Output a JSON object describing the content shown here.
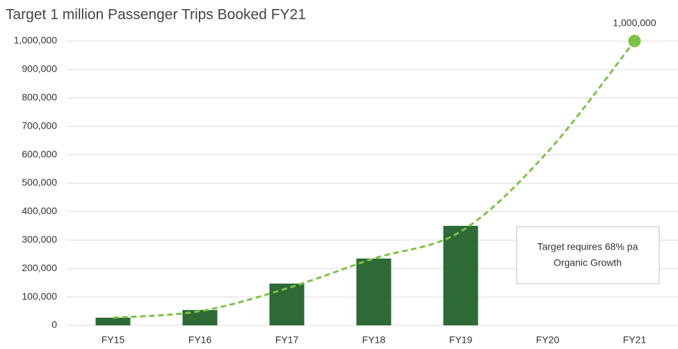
{
  "chart_data": {
    "type": "bar",
    "title": "Target 1 million Passenger Trips Booked FY21",
    "categories": [
      "FY15",
      "FY16",
      "FY17",
      "FY18",
      "FY19",
      "FY20",
      "FY21"
    ],
    "series": [
      {
        "name": "Passenger Trips",
        "type": "bar",
        "color": "#2d6a35",
        "values": [
          27000,
          54000,
          147000,
          235000,
          350000,
          null,
          null
        ]
      },
      {
        "name": "Target",
        "type": "line",
        "color": "#7dc242",
        "dashed": true,
        "values": [
          27000,
          50000,
          130000,
          235000,
          330000,
          610000,
          1000000
        ],
        "value_labels": [
          null,
          null,
          null,
          null,
          null,
          null,
          "1,000,000"
        ]
      }
    ],
    "annotation": [
      "Target requires 68% pa",
      "Organic Growth"
    ],
    "ylim": [
      0,
      1000000
    ],
    "yticks": [
      0,
      {
        "value": 100000,
        "label": "100,000"
      },
      {
        "value": 200000,
        "label": "200,000"
      },
      {
        "value": 300000,
        "label": "300,000"
      },
      {
        "value": 400000,
        "label": "400,000"
      },
      {
        "value": 500000,
        "label": "500,000"
      },
      {
        "value": 600000,
        "label": "600,000"
      },
      {
        "value": 700000,
        "label": "700,000"
      },
      {
        "value": 800000,
        "label": "800,000"
      },
      {
        "value": 900000,
        "label": "900,000"
      },
      {
        "value": 1000000,
        "label": "1,000,000"
      }
    ],
    "grid": true
  }
}
